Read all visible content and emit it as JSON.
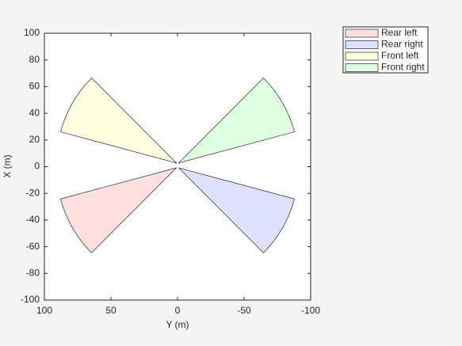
{
  "chart_data": {
    "type": "coverage",
    "xlabel": "Y (m)",
    "ylabel": "X (m)",
    "xlim": [
      100,
      -100
    ],
    "xticks": [
      100,
      50,
      0,
      -50,
      -100
    ],
    "ylim": [
      -100,
      100
    ],
    "yticks": [
      -100,
      -80,
      -60,
      -40,
      -20,
      0,
      20,
      40,
      60,
      80,
      100
    ],
    "legend": "outside-top-right",
    "series": [
      {
        "name": "Rear left",
        "color": "#ffe0e0",
        "position": [
          -0.9,
          0.9
        ],
        "yaw": 120,
        "fov": 30,
        "range": 90
      },
      {
        "name": "Rear right",
        "color": "#e0e0ff",
        "position": [
          -0.9,
          -0.9
        ],
        "yaw": -120,
        "fov": 30,
        "range": 90
      },
      {
        "name": "Front left",
        "color": "#ffffe0",
        "position": [
          2.8,
          0.9
        ],
        "yaw": 60,
        "fov": 30,
        "range": 90
      },
      {
        "name": "Front right",
        "color": "#e0ffe0",
        "position": [
          2.8,
          -0.9
        ],
        "yaw": -60,
        "fov": 30,
        "range": 90
      }
    ]
  }
}
